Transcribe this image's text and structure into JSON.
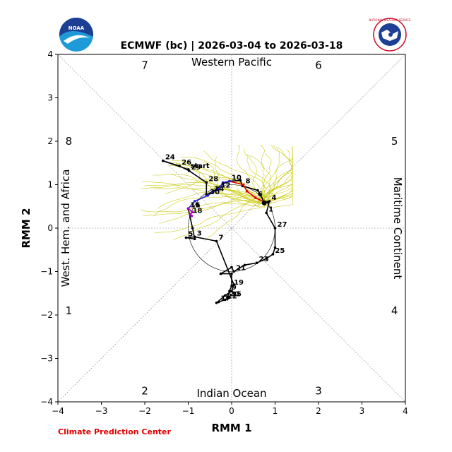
{
  "chart_data": {
    "type": "line",
    "title": "ECMWF (bc) | 2026-03-04 to 2026-03-18",
    "xlabel": "RMM 1",
    "ylabel": "RMM 2",
    "xlim": [
      -4,
      4
    ],
    "ylim": [
      -4,
      4
    ],
    "x_ticks": [
      "−4",
      "−3",
      "−2",
      "−1",
      "0",
      "1",
      "2",
      "3",
      "4"
    ],
    "y_ticks": [
      "−4",
      "−3",
      "−2",
      "−1",
      "0",
      "1",
      "2",
      "3",
      "4"
    ],
    "grid": false,
    "regions": {
      "top": "Western Pacific",
      "bottom": "Indian Ocean",
      "left": "West. Hem. and Africa",
      "right": "Maritime Continent"
    },
    "phases": [
      {
        "label": "1",
        "x": -3.75,
        "y": -1.9
      },
      {
        "label": "2",
        "x": -2.0,
        "y": -3.75
      },
      {
        "label": "3",
        "x": 2.0,
        "y": -3.75
      },
      {
        "label": "4",
        "x": 3.75,
        "y": -1.9
      },
      {
        "label": "5",
        "x": 3.75,
        "y": 2.0
      },
      {
        "label": "6",
        "x": 2.0,
        "y": 3.75
      },
      {
        "label": "7",
        "x": -2.0,
        "y": 3.75
      },
      {
        "label": "8",
        "x": -3.75,
        "y": 2.0
      }
    ],
    "series": [
      {
        "color": "#000000",
        "points": [
          {
            "x": -1.0,
            "y": 1.35,
            "label": "start"
          },
          {
            "x": -1.58,
            "y": 1.55,
            "label": "24"
          },
          {
            "x": -1.2,
            "y": 1.43,
            "label": "26"
          },
          {
            "x": -0.98,
            "y": 1.32,
            "label": "29"
          },
          {
            "x": -0.58,
            "y": 1.05,
            "label": "28"
          },
          {
            "x": -0.58,
            "y": 0.77,
            "label": ""
          },
          {
            "x": -0.42,
            "y": 0.85,
            "label": ""
          },
          {
            "x": -0.2,
            "y": 1.02,
            "label": ""
          },
          {
            "x": -0.05,
            "y": 1.08,
            "label": ""
          },
          {
            "x": 0.2,
            "y": 1.1,
            "label": ""
          },
          {
            "x": 0.25,
            "y": 0.97,
            "label": ""
          },
          {
            "x": 0.6,
            "y": 0.87,
            "label": ""
          },
          {
            "x": 0.75,
            "y": 0.6,
            "label": ""
          },
          {
            "x": 0.83,
            "y": 0.6,
            "label": ""
          },
          {
            "x": 0.87,
            "y": 0.62,
            "label": "4"
          },
          {
            "x": 0.8,
            "y": 0.35,
            "label": "1"
          },
          {
            "x": 1.0,
            "y": 0.0,
            "label": "27"
          },
          {
            "x": 1.0,
            "y": -0.45,
            "label": ""
          },
          {
            "x": 0.95,
            "y": -0.6,
            "label": "25"
          },
          {
            "x": 0.8,
            "y": -0.7,
            "label": ""
          },
          {
            "x": 0.58,
            "y": -0.8,
            "label": "23"
          },
          {
            "x": 0.3,
            "y": -0.85,
            "label": ""
          },
          {
            "x": 0.05,
            "y": -1.0,
            "label": "21"
          },
          {
            "x": 0.0,
            "y": -0.9,
            "label": ""
          },
          {
            "x": -0.25,
            "y": -1.05,
            "label": ""
          },
          {
            "x": 0.0,
            "y": -1.05,
            "label": ""
          },
          {
            "x": 0.0,
            "y": -1.33,
            "label": "19"
          },
          {
            "x": -0.05,
            "y": -1.45,
            "label": "9"
          },
          {
            "x": -0.1,
            "y": -1.6,
            "label": "20"
          },
          {
            "x": -0.05,
            "y": -1.6,
            "label": "15"
          },
          {
            "x": -0.15,
            "y": -1.65,
            "label": "22"
          },
          {
            "x": -0.3,
            "y": -1.7,
            "label": "17"
          },
          {
            "x": -0.35,
            "y": -1.72,
            "label": ""
          },
          {
            "x": -0.15,
            "y": -1.55,
            "label": ""
          },
          {
            "x": 0.0,
            "y": -1.45,
            "label": ""
          },
          {
            "x": 0.05,
            "y": -1.3,
            "label": ""
          },
          {
            "x": -0.35,
            "y": -0.3,
            "label": "7"
          },
          {
            "x": -0.85,
            "y": -0.2,
            "label": "3"
          },
          {
            "x": -1.05,
            "y": -0.22,
            "label": "5"
          },
          {
            "x": -0.85,
            "y": -0.25,
            "label": ""
          },
          {
            "x": -0.9,
            "y": 0.0,
            "label": ""
          },
          {
            "x": -1.0,
            "y": 0.45,
            "label": "11"
          }
        ]
      },
      {
        "color": "#e00000",
        "points": [
          {
            "x": -0.05,
            "y": 1.08,
            "label": "10"
          },
          {
            "x": 0.27,
            "y": 1.0,
            "label": "8"
          },
          {
            "x": 0.35,
            "y": 0.85,
            "label": ""
          },
          {
            "x": 0.55,
            "y": 0.7,
            "label": "6"
          },
          {
            "x": 0.75,
            "y": 0.6,
            "label": ""
          }
        ]
      },
      {
        "color": "#1f1fd0",
        "points": [
          {
            "x": -1.0,
            "y": 0.45,
            "label": ""
          },
          {
            "x": -0.85,
            "y": 0.62,
            "label": ""
          },
          {
            "x": -0.55,
            "y": 0.75,
            "label": "30"
          },
          {
            "x": -0.45,
            "y": 0.82,
            "label": "14"
          },
          {
            "x": -0.3,
            "y": 0.9,
            "label": "12"
          },
          {
            "x": -0.2,
            "y": 1.05,
            "label": ""
          },
          {
            "x": -0.05,
            "y": 1.08,
            "label": ""
          }
        ]
      },
      {
        "color": "#b000c8",
        "points": [
          {
            "x": -1.0,
            "y": 0.45,
            "label": "16"
          },
          {
            "x": -0.9,
            "y": 0.37,
            "label": ""
          },
          {
            "x": -0.95,
            "y": 0.32,
            "label": "18"
          },
          {
            "x": -0.92,
            "y": 0.28,
            "label": ""
          }
        ]
      }
    ],
    "start_point": {
      "x": 0.75,
      "y": 0.58
    },
    "ensemble_color": "#c8c800"
  },
  "credit": "Climate Prediction Center",
  "logos": {
    "left": "NOAA",
    "right": "NATIONAL WEATHER SERVICE"
  }
}
